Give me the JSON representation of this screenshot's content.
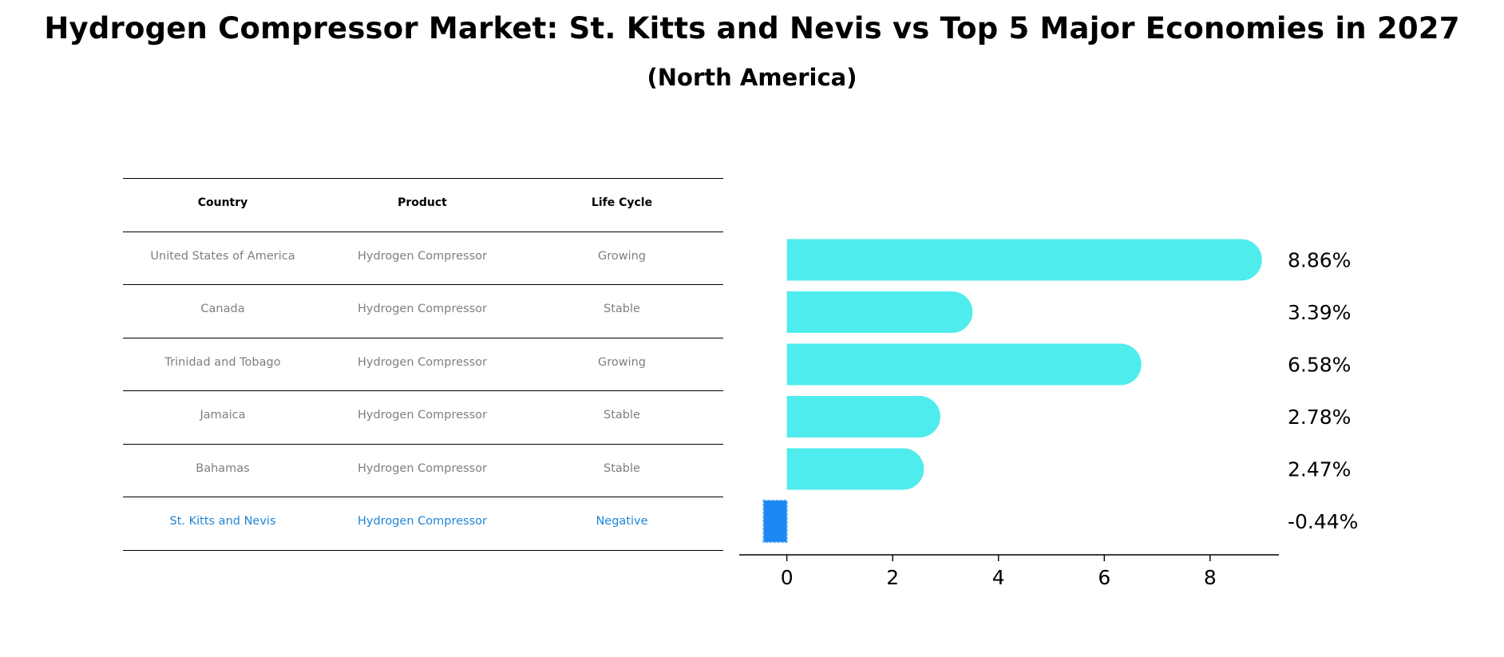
{
  "title": "Hydrogen Compressor Market: St. Kitts and Nevis vs Top 5 Major Economies in 2027",
  "subtitle": "(North America)",
  "table": {
    "headers": [
      "Country",
      "Product",
      "Life Cycle"
    ],
    "rows": [
      [
        "United States of America",
        "Hydrogen Compressor",
        "Growing"
      ],
      [
        "Canada",
        "Hydrogen Compressor",
        "Stable"
      ],
      [
        "Trinidad and Tobago",
        "Hydrogen Compressor",
        "Growing"
      ],
      [
        "Jamaica",
        "Hydrogen Compressor",
        "Stable"
      ],
      [
        "Bahamas",
        "Hydrogen Compressor",
        "Stable"
      ],
      [
        "St. Kitts and Nevis",
        "Hydrogen Compressor",
        "Negative"
      ]
    ],
    "text_color": "#7f7f7f",
    "highlight_color": "#1f85d6"
  },
  "chart_data": {
    "type": "bar",
    "orientation": "horizontal",
    "categories": [
      "United States of America",
      "Canada",
      "Trinidad and Tobago",
      "Jamaica",
      "Bahamas",
      "St. Kitts and Nevis"
    ],
    "values": [
      8.86,
      3.39,
      6.58,
      2.78,
      2.47,
      -0.44
    ],
    "data_labels": [
      "8.86%",
      "3.39%",
      "6.58%",
      "2.78%",
      "2.47%",
      "-0.44%"
    ],
    "xlim": [
      -0.9,
      9.3
    ],
    "xticks": [
      0,
      2,
      4,
      6,
      8
    ],
    "bar_color": "#4eecec",
    "highlight_color": "#1a87f2",
    "highlight_index": 5,
    "grid": false
  }
}
